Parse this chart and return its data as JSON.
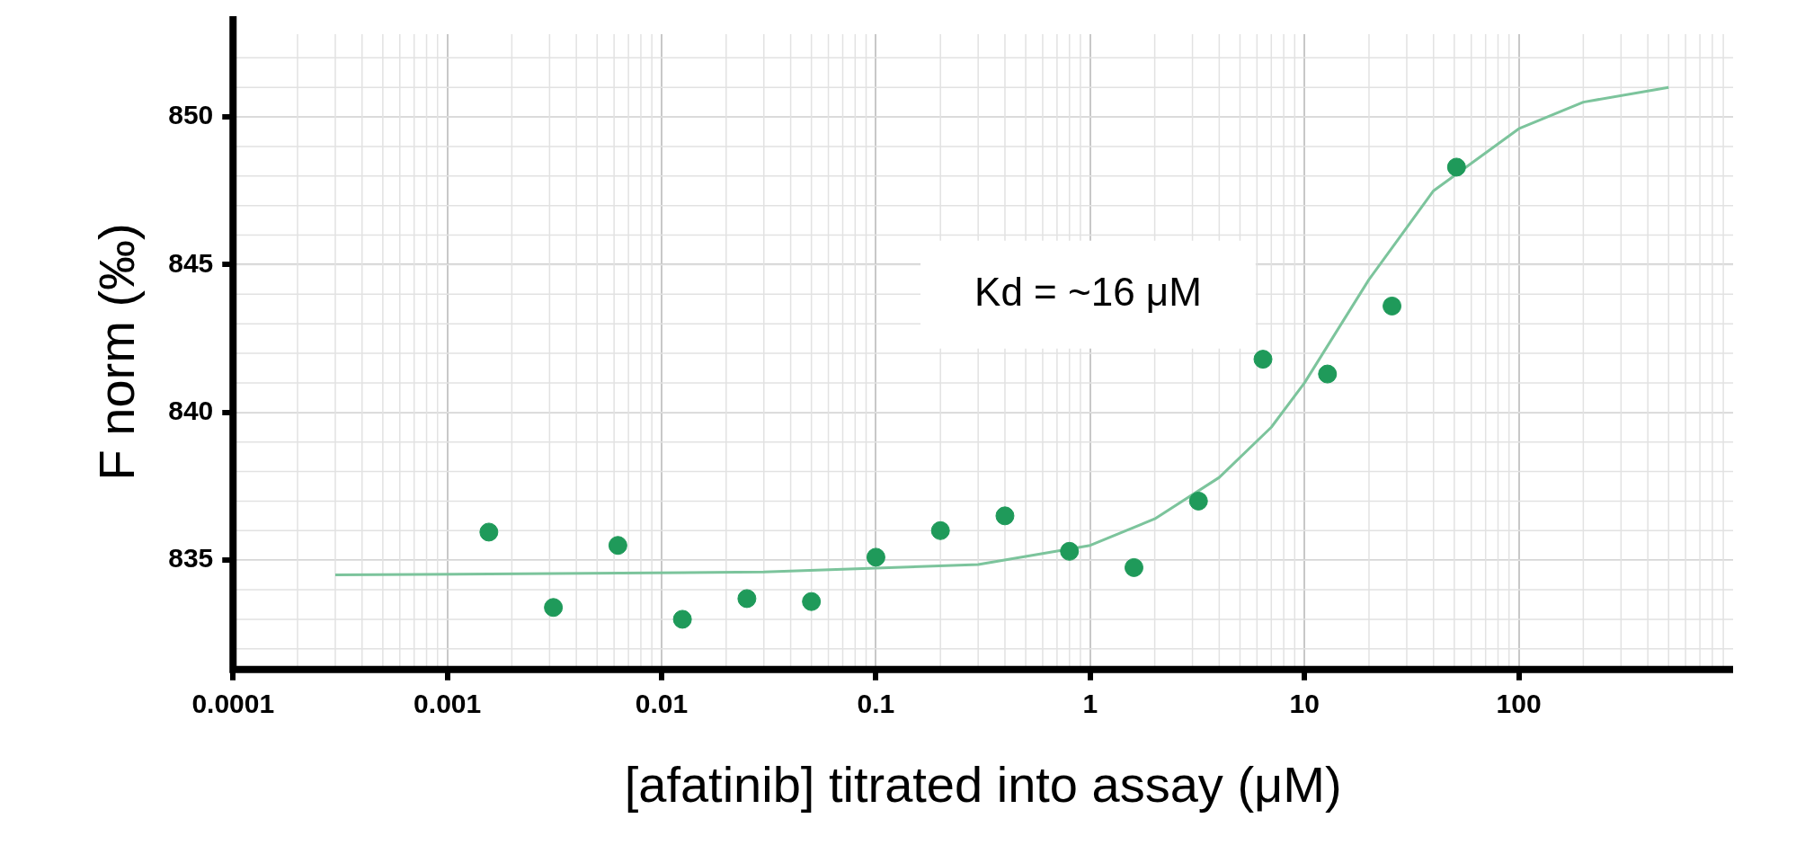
{
  "chart_data": {
    "type": "scatter",
    "xlabel": "[afatinib] titrated into assay (μM)",
    "ylabel": "F norm (‰)",
    "log": "x",
    "grid": true,
    "legend": false,
    "marker": "circle",
    "xlim": [
      0.0001,
      1000
    ],
    "xticks": [
      0.0001,
      0.001,
      0.01,
      0.1,
      1,
      10,
      100
    ],
    "ylim": [
      831.3,
      852.8
    ],
    "yticks": [
      835,
      840,
      845,
      850
    ],
    "series": [
      {
        "color": "#1f9a5a",
        "x": [
          0.0015625,
          0.003125,
          0.00625,
          0.0125,
          0.025,
          0.05,
          0.1,
          0.2,
          0.4,
          0.8,
          1.6,
          3.2,
          6.4,
          12.8,
          25.6,
          51.2
        ],
        "values": [
          835.95,
          833.4,
          835.5,
          833.0,
          833.7,
          833.6,
          835.1,
          836.0,
          836.5,
          835.3,
          834.75,
          837.0,
          841.8,
          841.3,
          843.6,
          848.3
        ]
      },
      {
        "type": "line",
        "color": "#7cc49c",
        "marker": "none",
        "x": [
          0.0003,
          0.03,
          0.3,
          1,
          2,
          4,
          7,
          10,
          20,
          40,
          100,
          200,
          500
        ],
        "values": [
          834.5,
          834.6,
          834.85,
          835.5,
          836.4,
          837.8,
          839.5,
          841,
          844.5,
          847.5,
          849.6,
          850.5,
          851
        ]
      }
    ],
    "annotations": [
      {
        "text": "Kd = ~16 μM"
      }
    ]
  }
}
